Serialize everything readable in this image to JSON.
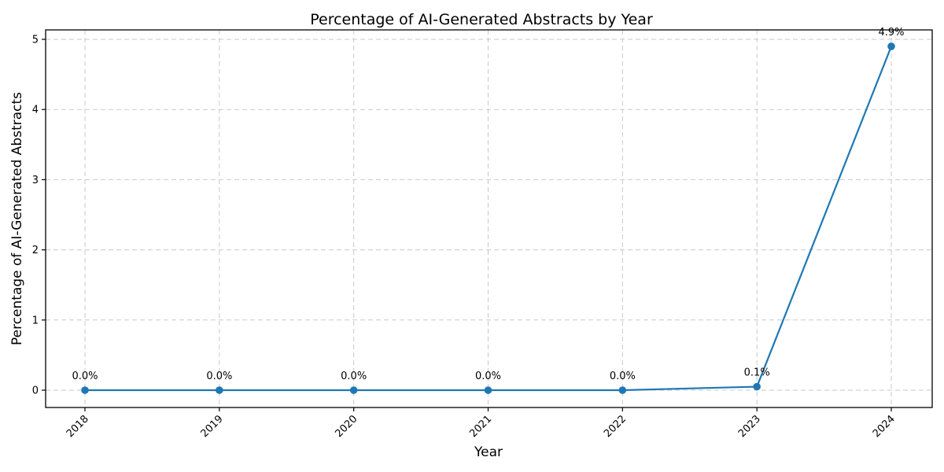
{
  "chart_data": {
    "type": "line",
    "title": "Percentage of AI-Generated Abstracts by Year",
    "xlabel": "Year",
    "ylabel": "Percentage of AI-Generated Abstracts",
    "categories": [
      "2018",
      "2019",
      "2020",
      "2021",
      "2022",
      "2023",
      "2024"
    ],
    "values": [
      0.0,
      0.0,
      0.0,
      0.0,
      0.0,
      0.05,
      4.9
    ],
    "point_labels": [
      "0.0%",
      "0.0%",
      "0.0%",
      "0.0%",
      "0.0%",
      "0.1%",
      "4.9%"
    ],
    "yticks": [
      0,
      1,
      2,
      3,
      4,
      5
    ],
    "ylim": [
      -0.25,
      5.15
    ],
    "x_tick_rotation": 45,
    "grid": true,
    "grid_style": "dashed",
    "legend_position": "none",
    "line_color": "#1f77b4",
    "grid_color": "#c9c9c9",
    "spine_color": "#000000",
    "background_color": "#ffffff"
  }
}
